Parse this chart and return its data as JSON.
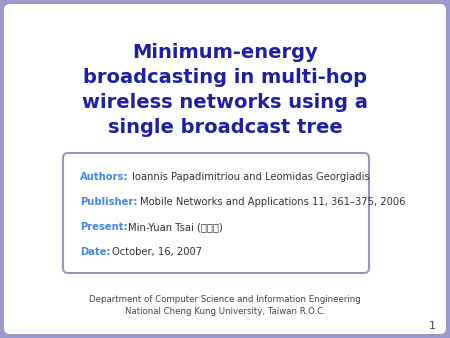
{
  "title_lines": [
    "Minimum-energy",
    "broadcasting in multi-hop",
    "wireless networks using a",
    "single broadcast tree"
  ],
  "title_color": "#1f1f9f",
  "bg_color": "#9999cc",
  "inner_bg_color": "#ffffff",
  "box_bg_color": "#ffffff",
  "box_border_color": "#9999bb",
  "label_color": "#4488ee",
  "text_color": "#333333",
  "author_label": "Authors:",
  "author_text": "Ioannis Papadimitriou and Leomidas Georgiadis",
  "publisher_label": "Publisher:",
  "publisher_text": "Mobile Networks and Applications 11, 361–375, 2006",
  "present_label": "Present:",
  "present_text": "Min-Yuan Tsai (蔡漪原)",
  "date_label": "Date:",
  "date_text": "October, 16, 2007",
  "footer_line1": "Department of Computer Science and Information Engineering",
  "footer_line2": "National Cheng Kung University, Taiwan R.O.C.",
  "slide_number": "1",
  "footer_color": "#444444"
}
